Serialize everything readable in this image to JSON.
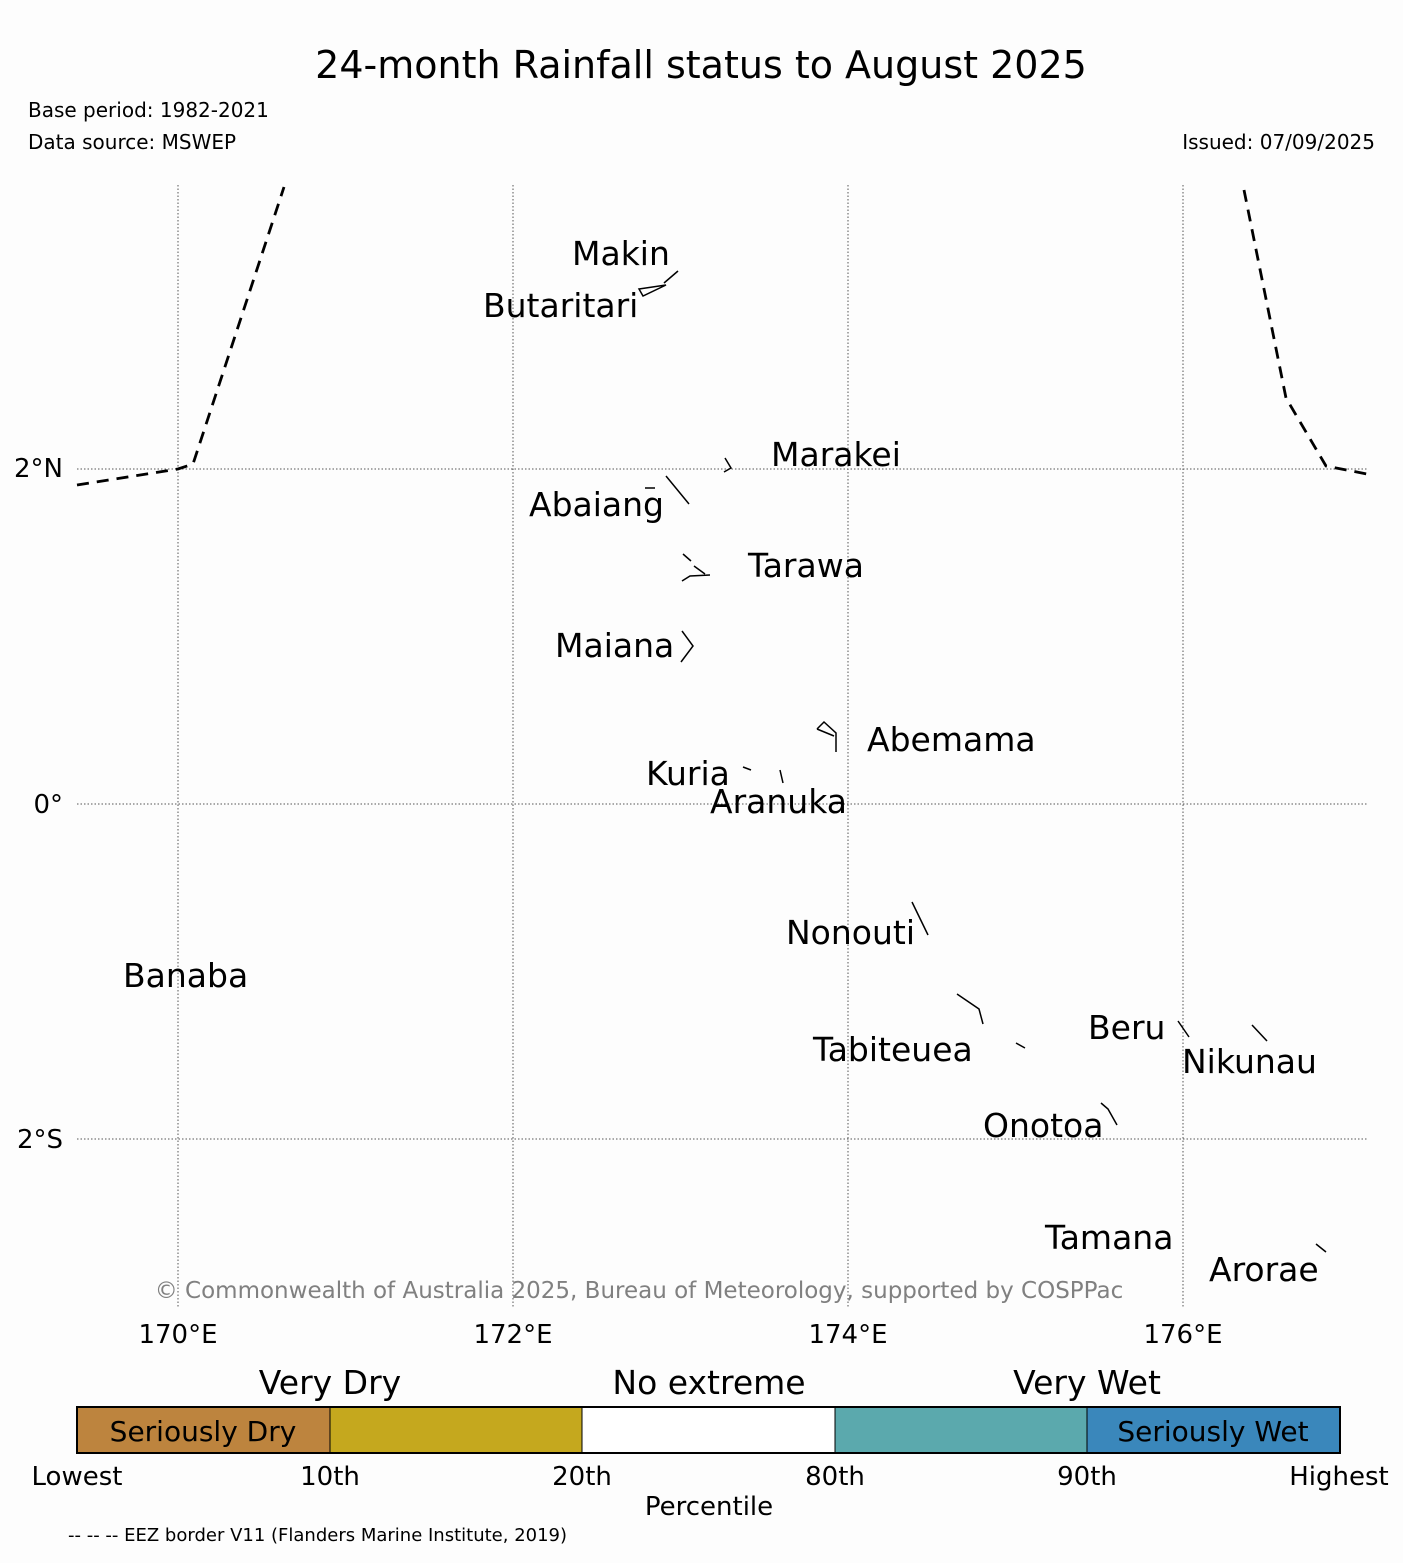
{
  "title": "24-month Rainfall status to August 2025",
  "base_period": "Base period: 1982-2021",
  "data_source": "Data source: MSWEP",
  "issued": "Issued: 07/09/2025",
  "copyright": "© Commonwealth of Australia 2025, Bureau of Meteorology, supported by COSPPac",
  "map": {
    "lon_labels": [
      "170°E",
      "172°E",
      "174°E",
      "176°E"
    ],
    "lat_labels": [
      "2°N",
      "0°",
      "2°S"
    ],
    "islands": [
      {
        "name": "Makin"
      },
      {
        "name": "Butaritari"
      },
      {
        "name": "Marakei"
      },
      {
        "name": "Abaiang"
      },
      {
        "name": "Tarawa"
      },
      {
        "name": "Maiana"
      },
      {
        "name": "Abemama"
      },
      {
        "name": "Kuria"
      },
      {
        "name": "Aranuka"
      },
      {
        "name": "Nonouti"
      },
      {
        "name": "Banaba"
      },
      {
        "name": "Beru"
      },
      {
        "name": "Tabiteuea"
      },
      {
        "name": "Nikunau"
      },
      {
        "name": "Onotoa"
      },
      {
        "name": "Tamana"
      },
      {
        "name": "Arorae"
      }
    ]
  },
  "legend": {
    "groups": [
      "Very Dry",
      "No extreme",
      "Very Wet"
    ],
    "boxes": [
      {
        "label": "Seriously Dry",
        "color": "#bd843e"
      },
      {
        "label": "",
        "color": "#c5a81e"
      },
      {
        "label": "",
        "color": "#ffffff"
      },
      {
        "label": "",
        "color": "#5ba9ad"
      },
      {
        "label": "Seriously Wet",
        "color": "#3a87bb"
      }
    ],
    "ticks": [
      "Lowest",
      "10th",
      "20th",
      "80th",
      "90th",
      "Highest"
    ],
    "axis_label": "Percentile"
  },
  "eez_note": "-- -- -- EEZ border V11 (Flanders Marine Institute, 2019)"
}
